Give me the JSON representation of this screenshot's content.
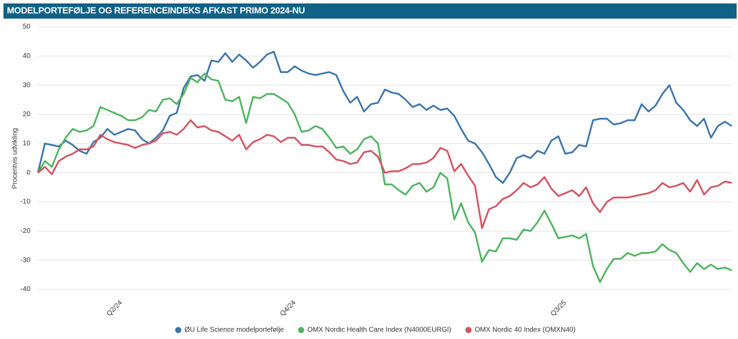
{
  "chart_data": {
    "type": "line",
    "title": "MODELPORTEFØLJE OG REFERENCEINDEKS AFKAST PRIMO 2024-NU",
    "y_label": "Procentvis udvikling",
    "categories": [
      null,
      null,
      null,
      null,
      null,
      null,
      null,
      null,
      null,
      null,
      null,
      null,
      "Q2/24",
      null,
      null,
      null,
      null,
      null,
      null,
      null,
      null,
      null,
      null,
      null,
      null,
      null,
      null,
      null,
      null,
      null,
      null,
      null,
      null,
      null,
      null,
      null,
      null,
      "Q4/24",
      null,
      null,
      null,
      null,
      null,
      null,
      null,
      null,
      null,
      null,
      null,
      null,
      null,
      null,
      null,
      null,
      null,
      null,
      null,
      null,
      null,
      null,
      null,
      null,
      null,
      null,
      null,
      null,
      null,
      null,
      null,
      null,
      null,
      null,
      null,
      null,
      null,
      null,
      "Q3/25",
      null,
      null,
      null,
      null,
      null,
      null,
      null,
      null,
      null,
      null,
      null,
      null,
      null,
      null,
      null,
      null,
      null,
      null,
      null,
      null,
      null,
      null,
      null,
      null
    ],
    "series": [
      {
        "name": "ØU Life Science modelportefølje",
        "color": "#3b74a8",
        "values": [
          0,
          10,
          9.5,
          9,
          11,
          9.5,
          7.5,
          6.5,
          10.5,
          12,
          15,
          13,
          14,
          15,
          14.5,
          11.5,
          10,
          12,
          14.5,
          19.5,
          20.5,
          29,
          33,
          33.5,
          31.5,
          38.5,
          38,
          41,
          38,
          40.5,
          38.5,
          36,
          38,
          40.5,
          41.5,
          34.5,
          34.5,
          36.5,
          35,
          34,
          33.5,
          34,
          34.5,
          33.5,
          28,
          24,
          26,
          21,
          23.5,
          24,
          28.5,
          27.5,
          27,
          25,
          22.5,
          23.5,
          21.5,
          23,
          21.5,
          22,
          19.5,
          15,
          11,
          10,
          7,
          3,
          -1.5,
          -3.5,
          0,
          5,
          6,
          5,
          7.5,
          6.5,
          11,
          12.5,
          6.5,
          7,
          9.5,
          9,
          18,
          18.5,
          18.5,
          16.5,
          17,
          18,
          18,
          23.5,
          21,
          23,
          27,
          30,
          24,
          21.5,
          18,
          16,
          18.5,
          12,
          16,
          17.5,
          16
        ]
      },
      {
        "name": "OMX Nordic Health Care Index (N4000EURGI)",
        "color": "#4db35e",
        "values": [
          0,
          4,
          2,
          8,
          12,
          15,
          14,
          14.5,
          16,
          22.5,
          21.5,
          20.5,
          19.5,
          18,
          18,
          19,
          21.5,
          21,
          25,
          25.5,
          23.5,
          27,
          32.5,
          31,
          34,
          32,
          31.5,
          25,
          24.5,
          26,
          17,
          26,
          25.5,
          27,
          27,
          25.5,
          24,
          20,
          14,
          14.5,
          16,
          15,
          12,
          8.5,
          9,
          6.5,
          8,
          11.5,
          12.5,
          10,
          -4,
          -4,
          -6,
          -7.5,
          -4.5,
          -3.5,
          -6.5,
          -5,
          0,
          -2,
          -16,
          -10.5,
          -17,
          -20.5,
          -30.5,
          -26.5,
          -27,
          -22.5,
          -22.5,
          -23,
          -19.5,
          -20,
          -17,
          -13,
          -17.5,
          -22.5,
          -22,
          -21.5,
          -22.5,
          -21,
          -32,
          -37.5,
          -33,
          -29.5,
          -29.5,
          -27.5,
          -28.5,
          -27.5,
          -27.5,
          -27,
          -24.5,
          -26.5,
          -27.5,
          -31,
          -34,
          -31,
          -33,
          -31.5,
          -33,
          -32.5,
          -33.5
        ]
      },
      {
        "name": "OMX Nordic 40 Index (OMXN40)",
        "color": "#d3525f",
        "values": [
          0,
          2,
          -0.5,
          4,
          5.5,
          6.5,
          8,
          8,
          9,
          13,
          11.5,
          10.5,
          10,
          9.5,
          8.5,
          9.5,
          10,
          11,
          13.5,
          14,
          13,
          15,
          18,
          15.5,
          16,
          14.5,
          14,
          12.5,
          11,
          13,
          8,
          10.5,
          11.5,
          13,
          12.5,
          10.5,
          12,
          12,
          9.5,
          9.5,
          9,
          9,
          7,
          4.5,
          4,
          3,
          3.5,
          7,
          7.5,
          5.5,
          0,
          0.5,
          0.5,
          1.5,
          3,
          3,
          3.5,
          5,
          8.5,
          7.5,
          0.5,
          3,
          -1,
          -4.5,
          -19,
          -12.5,
          -11.5,
          -9,
          -8,
          -6,
          -3.5,
          -5,
          -4,
          -1.5,
          -5.5,
          -8,
          -7,
          -6,
          -8,
          -5,
          -10.5,
          -13.5,
          -10,
          -8.5,
          -8.5,
          -8.5,
          -8,
          -7.5,
          -7,
          -6,
          -3.5,
          -5,
          -4.5,
          -3.5,
          -6.5,
          -2.5,
          -7.5,
          -5,
          -4.5,
          -3,
          -3.5
        ]
      }
    ],
    "ylim": [
      -40,
      50
    ],
    "yticks": [
      -40,
      -30,
      -20,
      -10,
      0,
      10,
      20,
      30,
      40,
      50
    ],
    "grid": true,
    "legend": "bottom"
  }
}
